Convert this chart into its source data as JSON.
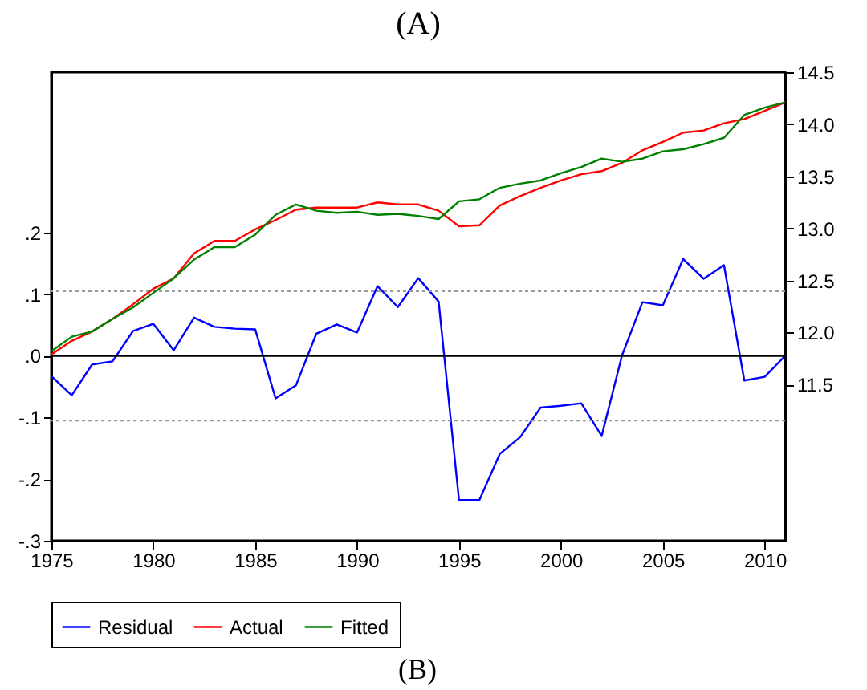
{
  "chart_data": {
    "type": "line",
    "title": "(A)",
    "x": [
      1975,
      1976,
      1977,
      1978,
      1979,
      1980,
      1981,
      1982,
      1983,
      1984,
      1985,
      1986,
      1987,
      1988,
      1989,
      1990,
      1991,
      1992,
      1993,
      1994,
      1995,
      1996,
      1997,
      1998,
      1999,
      2000,
      2001,
      2002,
      2003,
      2004,
      2005,
      2006,
      2007,
      2008,
      2009,
      2010,
      2011
    ],
    "series": [
      {
        "name": "Residual",
        "color": "#0000ff",
        "axis": "y",
        "values": [
          -0.033,
          -0.064,
          -0.014,
          -0.009,
          0.04,
          0.052,
          0.009,
          0.062,
          0.047,
          0.044,
          0.043,
          -0.069,
          -0.048,
          0.036,
          0.051,
          0.038,
          0.113,
          0.079,
          0.126,
          0.088,
          -0.234,
          -0.234,
          -0.159,
          -0.132,
          -0.084,
          -0.081,
          -0.077,
          -0.13,
          0.001,
          0.087,
          0.082,
          0.157,
          0.125,
          0.147,
          -0.04,
          -0.034,
          0.0
        ]
      },
      {
        "name": "Actual",
        "color": "#ff0000",
        "axis": "y2",
        "values": [
          11.79,
          11.92,
          12.01,
          12.13,
          12.27,
          12.42,
          12.52,
          12.76,
          12.88,
          12.88,
          12.99,
          13.08,
          13.18,
          13.2,
          13.2,
          13.2,
          13.25,
          13.23,
          13.23,
          13.17,
          13.02,
          13.03,
          13.22,
          13.31,
          13.39,
          13.46,
          13.52,
          13.55,
          13.63,
          13.75,
          13.83,
          13.92,
          13.94,
          14.01,
          14.05,
          14.13,
          14.21
        ]
      },
      {
        "name": "Fitted",
        "color": "#008000",
        "axis": "y2",
        "values": [
          11.82,
          11.96,
          12.01,
          12.13,
          12.24,
          12.38,
          12.52,
          12.7,
          12.82,
          12.82,
          12.94,
          13.13,
          13.23,
          13.17,
          13.15,
          13.16,
          13.13,
          13.14,
          13.12,
          13.09,
          13.26,
          13.28,
          13.39,
          13.43,
          13.46,
          13.53,
          13.59,
          13.67,
          13.64,
          13.67,
          13.74,
          13.76,
          13.81,
          13.87,
          14.09,
          14.16,
          14.21
        ]
      }
    ],
    "xlim": [
      1975,
      2011
    ],
    "xticks": [
      1975,
      1980,
      1985,
      1990,
      1995,
      2000,
      2005,
      2010
    ],
    "ylim": [
      -0.3,
      0.46
    ],
    "yticks": [
      {
        "value": -0.3,
        "label": "-.3"
      },
      {
        "value": -0.2,
        "label": "-.2"
      },
      {
        "value": -0.1,
        "label": "-.1"
      },
      {
        "value": 0,
        "label": ".0"
      },
      {
        "value": 0.1,
        "label": ".1"
      },
      {
        "value": 0.2,
        "label": ".2"
      }
    ],
    "y2lim": [
      10.0,
      14.5
    ],
    "y2ticks": [
      11.5,
      {
        "value": 12,
        "label": "12.0"
      },
      12.5,
      {
        "value": 13,
        "label": "13.0"
      },
      13.5,
      {
        "value": 14,
        "label": "14.0"
      },
      14.5
    ],
    "ref_lines": [
      {
        "axis": "y",
        "value": 0,
        "color": "#000000",
        "line_style": "solid"
      },
      {
        "axis": "y",
        "value": 0.105,
        "color": "#999999",
        "line_style": "dotted"
      },
      {
        "axis": "y",
        "value": -0.105,
        "color": "#999999",
        "line_style": "dotted"
      }
    ],
    "annotations": [
      "(B)"
    ],
    "grid": false,
    "legend": "bottom",
    "marker": "none",
    "line_style": "solid"
  }
}
